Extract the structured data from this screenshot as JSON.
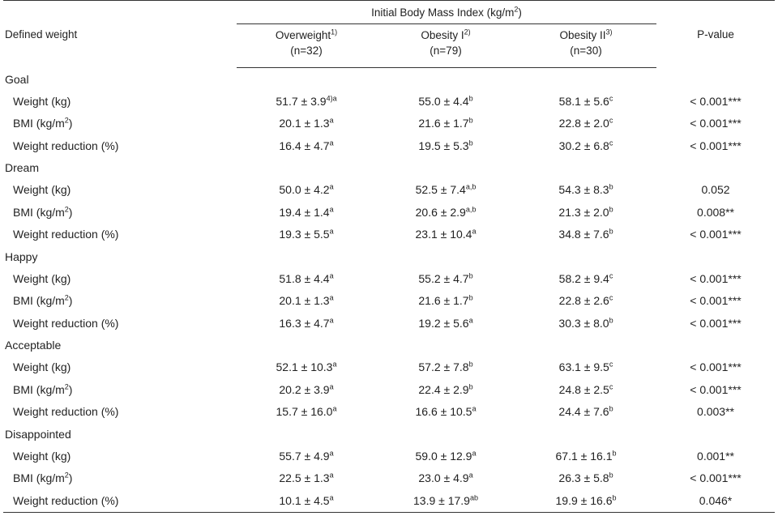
{
  "table": {
    "header": {
      "defined_weight": "Defined weight",
      "ibmi_prefix": "Initial Body Mass Index (kg/m",
      "ibmi_sup": "2",
      "ibmi_suffix": ")",
      "pvalue": "P-value",
      "columns": [
        {
          "name": "Overweight",
          "sup": "1)",
          "n": "(n=32)"
        },
        {
          "name": "Obesity I",
          "sup": "2)",
          "n": "(n=79)"
        },
        {
          "name": "Obesity II",
          "sup": "3)",
          "n": "(n=30)"
        }
      ]
    },
    "groups": [
      {
        "label": "Goal",
        "rows": [
          {
            "label": "Weight (kg)",
            "label_sup": "",
            "label_suffix": "",
            "cells": [
              {
                "v": "51.7 ± 3.9",
                "s": "4)a"
              },
              {
                "v": "55.0 ± 4.4",
                "s": "b"
              },
              {
                "v": "58.1 ± 5.6",
                "s": "c"
              }
            ],
            "p": "< 0.001***"
          },
          {
            "label": "BMI (kg/m",
            "label_sup": "2",
            "label_suffix": ")",
            "cells": [
              {
                "v": "20.1 ± 1.3",
                "s": "a"
              },
              {
                "v": "21.6 ± 1.7",
                "s": "b"
              },
              {
                "v": "22.8 ± 2.0",
                "s": "c"
              }
            ],
            "p": "< 0.001***"
          },
          {
            "label": "Weight reduction (%)",
            "label_sup": "",
            "label_suffix": "",
            "cells": [
              {
                "v": "16.4 ± 4.7",
                "s": "a"
              },
              {
                "v": "19.5 ± 5.3",
                "s": "b"
              },
              {
                "v": "30.2 ± 6.8",
                "s": "c"
              }
            ],
            "p": "< 0.001***"
          }
        ]
      },
      {
        "label": "Dream",
        "rows": [
          {
            "label": "Weight (kg)",
            "label_sup": "",
            "label_suffix": "",
            "cells": [
              {
                "v": "50.0 ± 4.2",
                "s": "a"
              },
              {
                "v": "52.5 ± 7.4",
                "s": "a,b"
              },
              {
                "v": "54.3 ± 8.3",
                "s": "b"
              }
            ],
            "p": "0.052"
          },
          {
            "label": "BMI (kg/m",
            "label_sup": "2",
            "label_suffix": ")",
            "cells": [
              {
                "v": "19.4 ± 1.4",
                "s": "a"
              },
              {
                "v": "20.6 ± 2.9",
                "s": "a,b"
              },
              {
                "v": "21.3 ± 2.0",
                "s": "b"
              }
            ],
            "p": "0.008**"
          },
          {
            "label": "Weight reduction (%)",
            "label_sup": "",
            "label_suffix": "",
            "cells": [
              {
                "v": "19.3 ± 5.5",
                "s": "a"
              },
              {
                "v": "23.1 ± 10.4",
                "s": "a"
              },
              {
                "v": "34.8 ± 7.6",
                "s": "b"
              }
            ],
            "p": "< 0.001***"
          }
        ]
      },
      {
        "label": "Happy",
        "rows": [
          {
            "label": "Weight (kg)",
            "label_sup": "",
            "label_suffix": "",
            "cells": [
              {
                "v": "51.8 ± 4.4",
                "s": "a"
              },
              {
                "v": "55.2 ± 4.7",
                "s": "b"
              },
              {
                "v": "58.2 ± 9.4",
                "s": "c"
              }
            ],
            "p": "< 0.001***"
          },
          {
            "label": "BMI (kg/m",
            "label_sup": "2",
            "label_suffix": ")",
            "cells": [
              {
                "v": "20.1 ± 1.3",
                "s": "a"
              },
              {
                "v": "21.6 ± 1.7",
                "s": "b"
              },
              {
                "v": "22.8 ± 2.6",
                "s": "c"
              }
            ],
            "p": "< 0.001***"
          },
          {
            "label": "Weight reduction (%)",
            "label_sup": "",
            "label_suffix": "",
            "cells": [
              {
                "v": "16.3 ± 4.7",
                "s": "a"
              },
              {
                "v": "19.2 ± 5.6",
                "s": "a"
              },
              {
                "v": "30.3 ± 8.0",
                "s": "b"
              }
            ],
            "p": "< 0.001***"
          }
        ]
      },
      {
        "label": "Acceptable",
        "rows": [
          {
            "label": "Weight (kg)",
            "label_sup": "",
            "label_suffix": "",
            "cells": [
              {
                "v": "52.1 ± 10.3",
                "s": "a"
              },
              {
                "v": "57.2 ± 7.8",
                "s": "b"
              },
              {
                "v": "63.1 ± 9.5",
                "s": "c"
              }
            ],
            "p": "< 0.001***"
          },
          {
            "label": "BMI (kg/m",
            "label_sup": "2",
            "label_suffix": ")",
            "cells": [
              {
                "v": "20.2 ± 3.9",
                "s": "a"
              },
              {
                "v": "22.4 ± 2.9",
                "s": "b"
              },
              {
                "v": "24.8 ± 2.5",
                "s": "c"
              }
            ],
            "p": "< 0.001***"
          },
          {
            "label": "Weight reduction (%)",
            "label_sup": "",
            "label_suffix": "",
            "cells": [
              {
                "v": "15.7 ± 16.0",
                "s": "a"
              },
              {
                "v": "16.6 ± 10.5",
                "s": "a"
              },
              {
                "v": "24.4 ± 7.6",
                "s": "b"
              }
            ],
            "p": "0.003**"
          }
        ]
      },
      {
        "label": "Disappointed",
        "rows": [
          {
            "label": "Weight (kg)",
            "label_sup": "",
            "label_suffix": "",
            "cells": [
              {
                "v": "55.7 ± 4.9",
                "s": "a"
              },
              {
                "v": "59.0 ± 12.9",
                "s": "a"
              },
              {
                "v": "67.1 ± 16.1",
                "s": "b"
              }
            ],
            "p": "0.001**"
          },
          {
            "label": "BMI (kg/m",
            "label_sup": "2",
            "label_suffix": ")",
            "cells": [
              {
                "v": "22.5 ± 1.3",
                "s": "a"
              },
              {
                "v": "23.0 ± 4.9",
                "s": "a"
              },
              {
                "v": "26.3 ± 5.8",
                "s": "b"
              }
            ],
            "p": "< 0.001***"
          },
          {
            "label": "Weight reduction (%)",
            "label_sup": "",
            "label_suffix": "",
            "cells": [
              {
                "v": "10.1 ± 4.5",
                "s": "a"
              },
              {
                "v": "13.9 ± 17.9",
                "s": "ab"
              },
              {
                "v": "19.9 ± 16.6",
                "s": "b"
              }
            ],
            "p": "0.046*"
          }
        ]
      }
    ]
  }
}
